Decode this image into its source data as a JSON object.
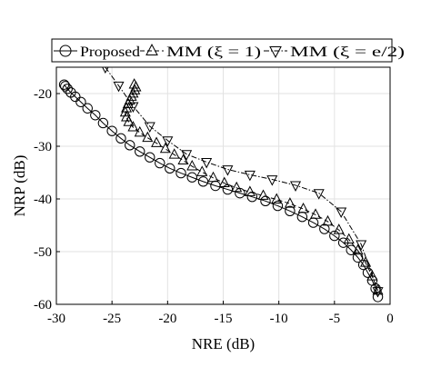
{
  "chart_data": {
    "type": "line",
    "title": "",
    "xlabel": "NRE (dB)",
    "ylabel": "NRP (dB)",
    "xlim": [
      -30,
      0
    ],
    "ylim": [
      -60,
      -15
    ],
    "xticks": [
      -30,
      -25,
      -20,
      -15,
      -10,
      -5,
      0
    ],
    "yticks": [
      -60,
      -50,
      -40,
      -30,
      -20
    ],
    "grid": true,
    "legend_position": "top",
    "series": [
      {
        "name": "Proposed",
        "marker": "circle",
        "line_style": "solid",
        "color": "#000000",
        "x": [
          -29.3,
          -29.2,
          -29.0,
          -28.7,
          -28.3,
          -27.8,
          -27.2,
          -26.5,
          -25.8,
          -25.0,
          -24.2,
          -23.4,
          -22.5,
          -21.6,
          -20.7,
          -19.8,
          -18.8,
          -17.8,
          -16.8,
          -15.7,
          -14.6,
          -13.5,
          -12.4,
          -11.2,
          -10.1,
          -9.0,
          -7.9,
          -6.9,
          -5.9,
          -5.0,
          -4.2,
          -3.5,
          -2.9,
          -2.4,
          -2.0,
          -1.6,
          -1.3,
          -1.1
        ],
        "y": [
          -18.3,
          -18.6,
          -19.1,
          -19.8,
          -20.6,
          -21.6,
          -22.8,
          -24.1,
          -25.6,
          -27.1,
          -28.5,
          -29.8,
          -31.0,
          -32.1,
          -33.2,
          -34.2,
          -35.1,
          -35.9,
          -36.7,
          -37.5,
          -38.2,
          -38.9,
          -39.6,
          -40.4,
          -41.3,
          -42.3,
          -43.4,
          -44.5,
          -45.7,
          -47.0,
          -48.3,
          -49.7,
          -51.1,
          -52.5,
          -54.0,
          -55.5,
          -57.0,
          -58.6
        ]
      },
      {
        "name": "MM (ξ = 1)",
        "marker": "triangle-up",
        "line_style": "dashed",
        "color": "#000000",
        "x": [
          -23.0,
          -22.85,
          -22.95,
          -23.1,
          -23.25,
          -23.4,
          -23.55,
          -23.7,
          -23.8,
          -23.7,
          -23.5,
          -23.1,
          -22.5,
          -21.8,
          -21.0,
          -20.2,
          -19.4,
          -18.6,
          -17.8,
          -16.9,
          -15.9,
          -14.9,
          -13.8,
          -12.6,
          -11.4,
          -10.2,
          -9.0,
          -7.8,
          -6.7,
          -5.6,
          -4.6,
          -3.7,
          -2.9,
          -2.2,
          -1.6,
          -1.1
        ],
        "y": [
          -18.3,
          -18.8,
          -19.4,
          -20.0,
          -20.6,
          -21.3,
          -22.0,
          -22.8,
          -23.6,
          -24.5,
          -25.4,
          -26.4,
          -27.4,
          -28.4,
          -29.4,
          -30.5,
          -31.6,
          -32.7,
          -33.8,
          -34.9,
          -36.0,
          -37.0,
          -37.9,
          -38.7,
          -39.4,
          -40.1,
          -40.9,
          -41.9,
          -43.0,
          -44.3,
          -45.9,
          -47.7,
          -49.8,
          -52.1,
          -54.7,
          -57.4
        ]
      },
      {
        "name": "MM (ξ = e/2)",
        "marker": "triangle-down",
        "line_style": "dashdot",
        "color": "#000000",
        "x": [
          -25.6,
          -24.4,
          -23.1,
          -21.6,
          -20.0,
          -18.3,
          -16.5,
          -14.6,
          -12.6,
          -10.6,
          -8.5,
          -6.4,
          -4.4,
          -2.6,
          -1.1
        ],
        "y": [
          -15.0,
          -18.5,
          -22.4,
          -26.2,
          -28.9,
          -31.5,
          -33.0,
          -34.4,
          -35.4,
          -36.3,
          -37.4,
          -38.9,
          -42.4,
          -48.6,
          -57.5
        ]
      }
    ]
  }
}
